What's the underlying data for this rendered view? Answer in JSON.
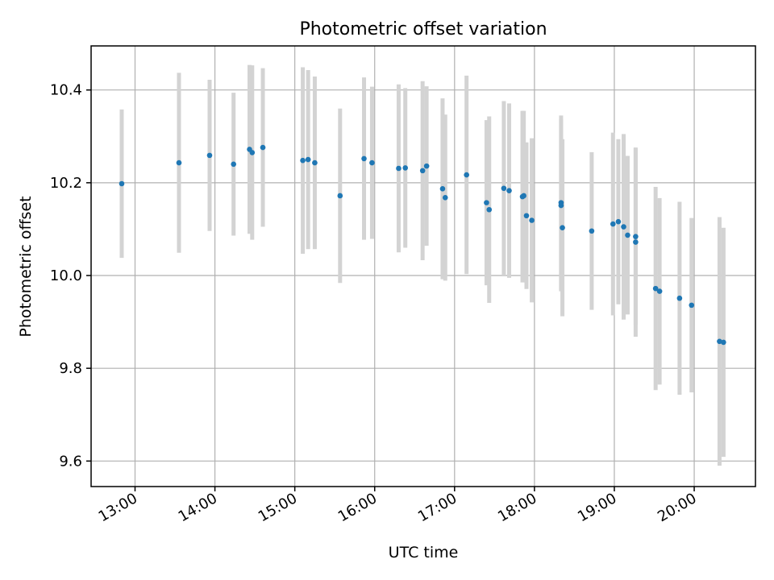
{
  "chart_data": {
    "type": "scatter",
    "title": "Photometric offset variation",
    "xlabel": "UTC time",
    "ylabel": "Photometric offset",
    "x_kind": "time",
    "xlim": [
      "12:27",
      "20:46"
    ],
    "ylim": [
      9.545,
      10.495
    ],
    "x_ticks": [
      "13:00",
      "14:00",
      "15:00",
      "16:00",
      "17:00",
      "18:00",
      "19:00",
      "20:00"
    ],
    "y_ticks": [
      9.6,
      9.8,
      10.0,
      10.2,
      10.4
    ],
    "y_tick_labels": [
      "9.6",
      "9.8",
      "10.0",
      "10.2",
      "10.4"
    ],
    "grid": true,
    "colors": {
      "points": "#1f77b4",
      "errorbars": "#d3d3d3",
      "grid": "#b0b0b0"
    },
    "series": [
      {
        "x": [
          "12:50",
          "13:33",
          "13:56",
          "14:14",
          "14:26",
          "14:28",
          "14:36",
          "15:06",
          "15:10",
          "15:15",
          "15:34",
          "15:52",
          "15:58",
          "16:18",
          "16:23",
          "16:36",
          "16:39",
          "16:51",
          "16:53",
          "17:09",
          "17:24",
          "17:26",
          "17:37",
          "17:41",
          "17:51",
          "17:52",
          "17:54",
          "17:58",
          "18:20",
          "18:20",
          "18:21",
          "18:43",
          "18:59",
          "19:03",
          "19:07",
          "19:10",
          "19:16",
          "19:16",
          "19:31",
          "19:34",
          "19:49",
          "19:58",
          "20:19",
          "20:22"
        ],
        "y": [
          10.198,
          10.243,
          10.259,
          10.24,
          10.272,
          10.265,
          10.276,
          10.248,
          10.25,
          10.243,
          10.172,
          10.252,
          10.243,
          10.231,
          10.232,
          10.226,
          10.236,
          10.187,
          10.168,
          10.217,
          10.157,
          10.142,
          10.188,
          10.183,
          10.17,
          10.172,
          10.129,
          10.119,
          10.151,
          10.157,
          10.103,
          10.096,
          10.111,
          10.116,
          10.105,
          10.087,
          10.084,
          10.072,
          9.972,
          9.966,
          9.951,
          9.936,
          9.858,
          9.856
        ],
        "yerr": [
          0.16,
          0.194,
          0.163,
          0.154,
          0.182,
          0.188,
          0.171,
          0.201,
          0.193,
          0.186,
          0.188,
          0.175,
          0.164,
          0.181,
          0.172,
          0.193,
          0.172,
          0.195,
          0.179,
          0.214,
          0.178,
          0.201,
          0.188,
          0.188,
          0.185,
          0.183,
          0.158,
          0.177,
          0.185,
          0.188,
          0.191,
          0.17,
          0.197,
          0.178,
          0.2,
          0.171,
          0.19,
          0.204,
          0.219,
          0.201,
          0.208,
          0.188,
          0.268,
          0.247
        ]
      }
    ]
  }
}
